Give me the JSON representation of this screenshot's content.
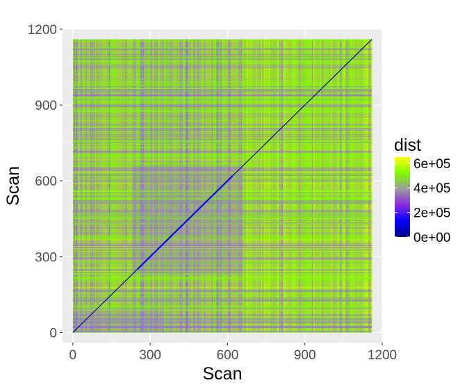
{
  "chart_data": {
    "type": "heatmap",
    "title": "",
    "xlabel": "Scan",
    "ylabel": "Scan",
    "xlim": [
      -40,
      1200
    ],
    "ylim": [
      -40,
      1200
    ],
    "x_data_range": [
      0,
      1160
    ],
    "y_data_range": [
      0,
      1160
    ],
    "x_ticks": [
      0,
      300,
      600,
      900,
      1200
    ],
    "x_tick_labels": [
      "0",
      "300",
      "600",
      "900",
      "1200"
    ],
    "y_ticks": [
      0,
      300,
      600,
      900,
      1200
    ],
    "y_tick_labels": [
      "0",
      "300",
      "600",
      "900",
      "1200"
    ],
    "grid": true,
    "legend": {
      "title": "dist",
      "position": "right",
      "min": 0,
      "max": 650000,
      "breaks": [
        0,
        200000,
        400000,
        600000
      ],
      "labels": [
        "0e+00",
        "2e+05",
        "4e+05",
        "6e+05"
      ],
      "gradient": [
        "#000080",
        "#0000ff",
        "#8a2be2",
        "#9b9b9b",
        "#7cfc00",
        "#ffff00"
      ]
    },
    "diagonal_value": 0,
    "dominant_colors": {
      "low": "#0000ff",
      "mid": "#9370db",
      "high": "#7cfc00",
      "max": "#ccff00"
    },
    "panel_background": "#ebebeb"
  }
}
